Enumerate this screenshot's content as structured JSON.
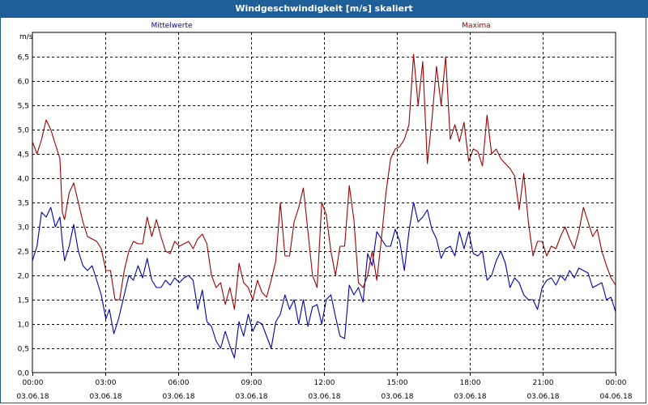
{
  "window": {
    "title": "Windgeschwindigkeit [m/s] skaliert"
  },
  "colors": {
    "titlebar": "#1f5f99",
    "mean": "#0000b4",
    "max": "#a00000",
    "grid": "#000000"
  },
  "chart_data": {
    "type": "line",
    "title": "Windgeschwindigkeit [m/s] skaliert",
    "ylabel": "m/s",
    "ylim": [
      0,
      7
    ],
    "yticks": [
      "0,0",
      "0,5",
      "1,0",
      "1,5",
      "2,0",
      "2,5",
      "3,0",
      "3,5",
      "4,0",
      "4,5",
      "5,0",
      "5,5",
      "6,0",
      "6,5"
    ],
    "yticks_values": [
      0,
      0.5,
      1,
      1.5,
      2,
      2.5,
      3,
      3.5,
      4,
      4.5,
      5,
      5.5,
      6,
      6.5
    ],
    "xlim_hours": [
      0,
      24
    ],
    "xticks": [
      {
        "time": "00:00",
        "date": "03.06.18"
      },
      {
        "time": "03:00",
        "date": "03.06.18"
      },
      {
        "time": "06:00",
        "date": "03.06.18"
      },
      {
        "time": "09:00",
        "date": "03.06.18"
      },
      {
        "time": "12:00",
        "date": "03.06.18"
      },
      {
        "time": "15:00",
        "date": "03.06.18"
      },
      {
        "time": "18:00",
        "date": "03.06.18"
      },
      {
        "time": "21:00",
        "date": "03.06.18"
      },
      {
        "time": "00:00",
        "date": "04.06.18"
      }
    ],
    "grid": true,
    "legend": [
      "Mittelwerte",
      "Maxima"
    ],
    "series": [
      {
        "name": "Mittelwerte",
        "color": "#0000b4",
        "points": [
          [
            0,
            2.3
          ],
          [
            0.2,
            2.6
          ],
          [
            0.4,
            3.3
          ],
          [
            0.6,
            3.2
          ],
          [
            0.8,
            3.4
          ],
          [
            1.0,
            3.0
          ],
          [
            1.2,
            3.2
          ],
          [
            1.3,
            2.7
          ],
          [
            1.4,
            2.3
          ],
          [
            1.6,
            2.6
          ],
          [
            1.8,
            3.05
          ],
          [
            2.0,
            2.5
          ],
          [
            2.2,
            2.2
          ],
          [
            2.4,
            2.1
          ],
          [
            2.6,
            2.2
          ],
          [
            2.8,
            1.9
          ],
          [
            3.0,
            1.6
          ],
          [
            3.2,
            1.1
          ],
          [
            3.35,
            1.3
          ],
          [
            3.55,
            0.8
          ],
          [
            3.75,
            1.1
          ],
          [
            4.0,
            1.6
          ],
          [
            4.2,
            2.0
          ],
          [
            4.4,
            1.9
          ],
          [
            4.6,
            2.2
          ],
          [
            4.8,
            1.95
          ],
          [
            5.0,
            2.35
          ],
          [
            5.2,
            1.9
          ],
          [
            5.4,
            1.75
          ],
          [
            5.6,
            1.75
          ],
          [
            5.8,
            1.9
          ],
          [
            6.0,
            1.8
          ],
          [
            6.2,
            1.95
          ],
          [
            6.4,
            1.85
          ],
          [
            6.6,
            1.95
          ],
          [
            6.8,
            2.0
          ],
          [
            7.0,
            1.9
          ],
          [
            7.2,
            1.3
          ],
          [
            7.4,
            1.7
          ],
          [
            7.6,
            1.05
          ],
          [
            7.8,
            0.95
          ],
          [
            8.0,
            0.65
          ],
          [
            8.2,
            0.5
          ],
          [
            8.4,
            0.85
          ],
          [
            8.6,
            0.55
          ],
          [
            8.8,
            0.3
          ],
          [
            9.0,
            1.05
          ],
          [
            9.2,
            0.75
          ],
          [
            9.4,
            1.2
          ],
          [
            9.6,
            0.85
          ],
          [
            9.8,
            1.05
          ],
          [
            10.0,
            1.0
          ],
          [
            10.2,
            0.75
          ],
          [
            10.4,
            0.5
          ],
          [
            10.6,
            1.05
          ],
          [
            10.8,
            1.2
          ],
          [
            11.0,
            1.6
          ],
          [
            11.2,
            1.3
          ],
          [
            11.4,
            1.5
          ],
          [
            11.6,
            1.0
          ],
          [
            11.8,
            1.5
          ],
          [
            12.0,
            0.95
          ],
          [
            12.2,
            1.35
          ],
          [
            12.4,
            1.4
          ],
          [
            12.6,
            1.0
          ],
          [
            12.8,
            1.5
          ],
          [
            13.0,
            1.6
          ],
          [
            13.2,
            1.15
          ],
          [
            13.4,
            0.75
          ],
          [
            13.6,
            0.7
          ],
          [
            13.8,
            1.8
          ],
          [
            14.0,
            1.6
          ],
          [
            14.2,
            1.75
          ],
          [
            14.4,
            1.45
          ],
          [
            14.6,
            2.45
          ],
          [
            14.8,
            2.2
          ],
          [
            15.0,
            2.9
          ],
          [
            15.2,
            2.75
          ],
          [
            15.4,
            2.6
          ],
          [
            15.6,
            2.6
          ],
          [
            15.8,
            2.95
          ],
          [
            16.0,
            2.7
          ],
          [
            16.2,
            2.1
          ],
          [
            16.4,
            2.9
          ],
          [
            16.6,
            3.5
          ],
          [
            16.8,
            3.1
          ],
          [
            17.0,
            3.2
          ],
          [
            17.2,
            3.35
          ],
          [
            17.4,
            2.95
          ],
          [
            17.6,
            2.75
          ],
          [
            17.8,
            2.35
          ],
          [
            18.0,
            2.55
          ],
          [
            18.2,
            2.6
          ],
          [
            18.4,
            2.4
          ],
          [
            18.6,
            2.9
          ],
          [
            18.8,
            2.55
          ],
          [
            19.0,
            2.9
          ],
          [
            19.2,
            2.45
          ],
          [
            19.4,
            2.4
          ],
          [
            19.6,
            2.5
          ],
          [
            19.8,
            1.9
          ],
          [
            20.0,
            2.0
          ],
          [
            20.2,
            2.3
          ],
          [
            20.4,
            2.5
          ],
          [
            20.6,
            2.25
          ],
          [
            20.8,
            1.75
          ],
          [
            21.0,
            1.95
          ],
          [
            21.2,
            1.85
          ],
          [
            21.4,
            1.6
          ],
          [
            21.6,
            1.5
          ],
          [
            21.8,
            1.5
          ],
          [
            22.0,
            1.3
          ],
          [
            22.2,
            1.75
          ],
          [
            22.4,
            1.9
          ],
          [
            22.6,
            1.95
          ],
          [
            22.8,
            1.8
          ],
          [
            23.0,
            2.0
          ],
          [
            23.2,
            1.9
          ],
          [
            23.4,
            2.1
          ],
          [
            23.6,
            1.95
          ],
          [
            23.8,
            2.15
          ],
          [
            24.0,
            2.1
          ],
          [
            24.2,
            2.05
          ],
          [
            24.4,
            1.75
          ],
          [
            24.6,
            1.8
          ],
          [
            24.8,
            1.85
          ],
          [
            25.0,
            1.5
          ],
          [
            25.2,
            1.55
          ],
          [
            25.4,
            1.25
          ]
        ]
      },
      {
        "name": "Maxima",
        "color": "#a00000",
        "points": [
          [
            0,
            4.75
          ],
          [
            0.2,
            4.5
          ],
          [
            0.4,
            4.8
          ],
          [
            0.6,
            5.2
          ],
          [
            0.8,
            5.0
          ],
          [
            1.0,
            4.7
          ],
          [
            1.2,
            4.4
          ],
          [
            1.3,
            3.3
          ],
          [
            1.4,
            3.15
          ],
          [
            1.6,
            3.7
          ],
          [
            1.8,
            3.9
          ],
          [
            2.0,
            3.5
          ],
          [
            2.2,
            3.1
          ],
          [
            2.4,
            2.8
          ],
          [
            2.6,
            2.75
          ],
          [
            2.8,
            2.7
          ],
          [
            3.0,
            2.55
          ],
          [
            3.2,
            2.1
          ],
          [
            3.4,
            2.1
          ],
          [
            3.6,
            1.5
          ],
          [
            3.8,
            1.5
          ],
          [
            4.0,
            2.1
          ],
          [
            4.2,
            2.5
          ],
          [
            4.4,
            2.7
          ],
          [
            4.6,
            2.65
          ],
          [
            4.8,
            2.65
          ],
          [
            5.0,
            3.2
          ],
          [
            5.2,
            2.8
          ],
          [
            5.4,
            3.15
          ],
          [
            5.6,
            2.8
          ],
          [
            5.8,
            2.5
          ],
          [
            6.0,
            2.45
          ],
          [
            6.2,
            2.7
          ],
          [
            6.4,
            2.6
          ],
          [
            6.6,
            2.65
          ],
          [
            6.8,
            2.7
          ],
          [
            7.0,
            2.55
          ],
          [
            7.2,
            2.75
          ],
          [
            7.4,
            2.85
          ],
          [
            7.6,
            2.65
          ],
          [
            7.8,
            2.0
          ],
          [
            8.0,
            1.75
          ],
          [
            8.2,
            1.85
          ],
          [
            8.4,
            1.4
          ],
          [
            8.6,
            1.75
          ],
          [
            8.8,
            1.3
          ],
          [
            9.0,
            2.25
          ],
          [
            9.2,
            1.85
          ],
          [
            9.4,
            1.75
          ],
          [
            9.6,
            1.5
          ],
          [
            9.8,
            1.9
          ],
          [
            10.0,
            1.65
          ],
          [
            10.2,
            1.55
          ],
          [
            10.4,
            1.9
          ],
          [
            10.6,
            2.3
          ],
          [
            10.8,
            3.5
          ],
          [
            11.0,
            2.4
          ],
          [
            11.2,
            2.4
          ],
          [
            11.4,
            3.1
          ],
          [
            11.6,
            3.4
          ],
          [
            11.8,
            3.8
          ],
          [
            12.0,
            2.9
          ],
          [
            12.2,
            2.0
          ],
          [
            12.4,
            1.75
          ],
          [
            12.6,
            3.5
          ],
          [
            12.8,
            3.25
          ],
          [
            13.0,
            2.5
          ],
          [
            13.2,
            2.0
          ],
          [
            13.4,
            2.6
          ],
          [
            13.6,
            2.6
          ],
          [
            13.8,
            3.85
          ],
          [
            14.0,
            3.15
          ],
          [
            14.2,
            1.85
          ],
          [
            14.4,
            1.75
          ],
          [
            14.6,
            2.0
          ],
          [
            14.8,
            2.5
          ],
          [
            15.0,
            1.9
          ],
          [
            15.2,
            2.75
          ],
          [
            15.4,
            3.7
          ],
          [
            15.6,
            4.4
          ],
          [
            15.8,
            4.6
          ],
          [
            16.0,
            4.65
          ],
          [
            16.2,
            4.8
          ],
          [
            16.4,
            5.1
          ],
          [
            16.6,
            6.55
          ],
          [
            16.8,
            5.5
          ],
          [
            17.0,
            6.4
          ],
          [
            17.2,
            4.3
          ],
          [
            17.4,
            5.2
          ],
          [
            17.6,
            6.3
          ],
          [
            17.8,
            5.5
          ],
          [
            18.0,
            6.5
          ],
          [
            18.2,
            4.8
          ],
          [
            18.4,
            5.1
          ],
          [
            18.6,
            4.75
          ],
          [
            18.8,
            5.15
          ],
          [
            19.0,
            4.35
          ],
          [
            19.2,
            4.6
          ],
          [
            19.4,
            4.55
          ],
          [
            19.6,
            4.25
          ],
          [
            19.8,
            5.3
          ],
          [
            20.0,
            4.5
          ],
          [
            20.2,
            4.6
          ],
          [
            20.4,
            4.4
          ],
          [
            20.6,
            4.3
          ],
          [
            20.8,
            4.2
          ],
          [
            21.0,
            4.05
          ],
          [
            21.2,
            3.35
          ],
          [
            21.4,
            4.1
          ],
          [
            21.6,
            3.1
          ],
          [
            21.8,
            2.4
          ],
          [
            22.0,
            2.7
          ],
          [
            22.2,
            2.7
          ],
          [
            22.4,
            2.4
          ],
          [
            22.6,
            2.6
          ],
          [
            22.8,
            2.55
          ],
          [
            23.0,
            2.8
          ],
          [
            23.2,
            3.0
          ],
          [
            23.4,
            2.75
          ],
          [
            23.6,
            2.55
          ],
          [
            23.8,
            2.9
          ],
          [
            24.0,
            3.4
          ],
          [
            24.2,
            3.1
          ],
          [
            24.4,
            2.8
          ],
          [
            24.6,
            2.95
          ],
          [
            24.8,
            2.5
          ],
          [
            25.0,
            2.2
          ],
          [
            25.2,
            1.95
          ],
          [
            25.4,
            1.8
          ]
        ]
      }
    ]
  }
}
